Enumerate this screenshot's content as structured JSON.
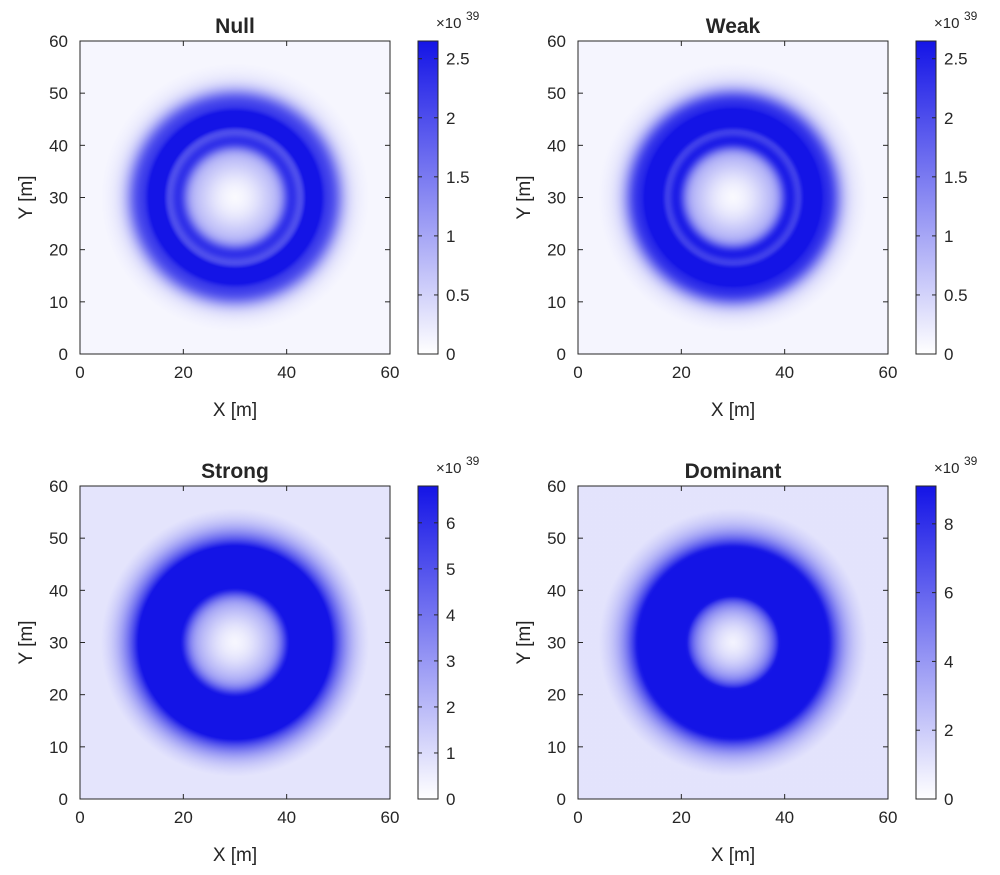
{
  "colors": {
    "accent": "#1414e6",
    "background": "#ffffff",
    "axis": "#262626"
  },
  "chart_data": [
    {
      "type": "heatmap",
      "title": "Null",
      "xlabel": "X [m]",
      "ylabel": "Y [m]",
      "xlim": [
        0,
        60
      ],
      "ylim": [
        0,
        60
      ],
      "xticks": [
        0,
        20,
        40,
        60
      ],
      "yticks": [
        0,
        10,
        20,
        30,
        40,
        50,
        60
      ],
      "colorbar": {
        "min": 0,
        "max": 2.65,
        "ticks": [
          "0",
          "0.5",
          "1",
          "1.5",
          "2",
          "2.5"
        ],
        "tick_values": [
          0,
          0.5,
          1,
          1.5,
          2,
          2.5
        ],
        "multiplier": "×10",
        "exponent": "39"
      },
      "pattern": {
        "center": [
          30,
          30
        ],
        "bands": [
          {
            "radius": 8,
            "width": 3,
            "peak": 0.12
          },
          {
            "radius": 11,
            "width": 1.3,
            "peak": 0.55
          },
          {
            "radius": 15,
            "width": 1.3,
            "peak": 1.0
          },
          {
            "radius": 18.5,
            "width": 1.8,
            "peak": 0.55
          },
          {
            "radius": 14,
            "width": 6,
            "peak": 0.28
          }
        ]
      }
    },
    {
      "type": "heatmap",
      "title": "Weak",
      "xlabel": "X [m]",
      "ylabel": "Y [m]",
      "xlim": [
        0,
        60
      ],
      "ylim": [
        0,
        60
      ],
      "xticks": [
        0,
        20,
        40,
        60
      ],
      "yticks": [
        0,
        10,
        20,
        30,
        40,
        50,
        60
      ],
      "colorbar": {
        "min": 0,
        "max": 2.65,
        "ticks": [
          "0",
          "0.5",
          "1",
          "1.5",
          "2",
          "2.5"
        ],
        "tick_values": [
          0,
          0.5,
          1,
          1.5,
          2,
          2.5
        ],
        "multiplier": "×10",
        "exponent": "39"
      },
      "pattern": {
        "center": [
          30,
          30
        ],
        "bands": [
          {
            "radius": 8,
            "width": 3,
            "peak": 0.12
          },
          {
            "radius": 11,
            "width": 1.3,
            "peak": 0.6
          },
          {
            "radius": 15,
            "width": 1.3,
            "peak": 1.0
          },
          {
            "radius": 18.5,
            "width": 1.8,
            "peak": 0.6
          },
          {
            "radius": 14,
            "width": 6,
            "peak": 0.32
          }
        ]
      }
    },
    {
      "type": "heatmap",
      "title": "Strong",
      "xlabel": "X [m]",
      "ylabel": "Y [m]",
      "xlim": [
        0,
        60
      ],
      "ylim": [
        0,
        60
      ],
      "xticks": [
        0,
        20,
        40,
        60
      ],
      "yticks": [
        0,
        10,
        20,
        30,
        40,
        50,
        60
      ],
      "colorbar": {
        "min": 0,
        "max": 6.8,
        "ticks": [
          "0",
          "1",
          "2",
          "3",
          "4",
          "5",
          "6"
        ],
        "tick_values": [
          0,
          1,
          2,
          3,
          4,
          5,
          6
        ],
        "multiplier": "×10",
        "exponent": "39"
      },
      "pattern": {
        "center": [
          30,
          30
        ],
        "bands": [
          {
            "radius": 8,
            "width": 3,
            "peak": 0.12
          },
          {
            "radius": 11,
            "width": 1.5,
            "peak": 0.5
          },
          {
            "radius": 15,
            "width": 1.8,
            "peak": 1.0
          },
          {
            "radius": 17,
            "width": 3,
            "peak": 0.6
          },
          {
            "radius": 15,
            "width": 6.5,
            "peak": 0.45
          }
        ]
      }
    },
    {
      "type": "heatmap",
      "title": "Dominant",
      "xlabel": "X [m]",
      "ylabel": "Y [m]",
      "xlim": [
        0,
        60
      ],
      "ylim": [
        0,
        60
      ],
      "xticks": [
        0,
        20,
        40,
        60
      ],
      "yticks": [
        0,
        10,
        20,
        30,
        40,
        50,
        60
      ],
      "colorbar": {
        "min": 0,
        "max": 9.1,
        "ticks": [
          "0",
          "2",
          "4",
          "6",
          "8"
        ],
        "tick_values": [
          0,
          2,
          4,
          6,
          8
        ],
        "multiplier": "×10",
        "exponent": "39"
      },
      "pattern": {
        "center": [
          30,
          30
        ],
        "bands": [
          {
            "radius": 8,
            "width": 3,
            "peak": 0.15
          },
          {
            "radius": 11,
            "width": 1.8,
            "peak": 0.55
          },
          {
            "radius": 15,
            "width": 3.2,
            "peak": 1.0
          },
          {
            "radius": 14.5,
            "width": 6.5,
            "peak": 0.55
          }
        ]
      }
    }
  ]
}
